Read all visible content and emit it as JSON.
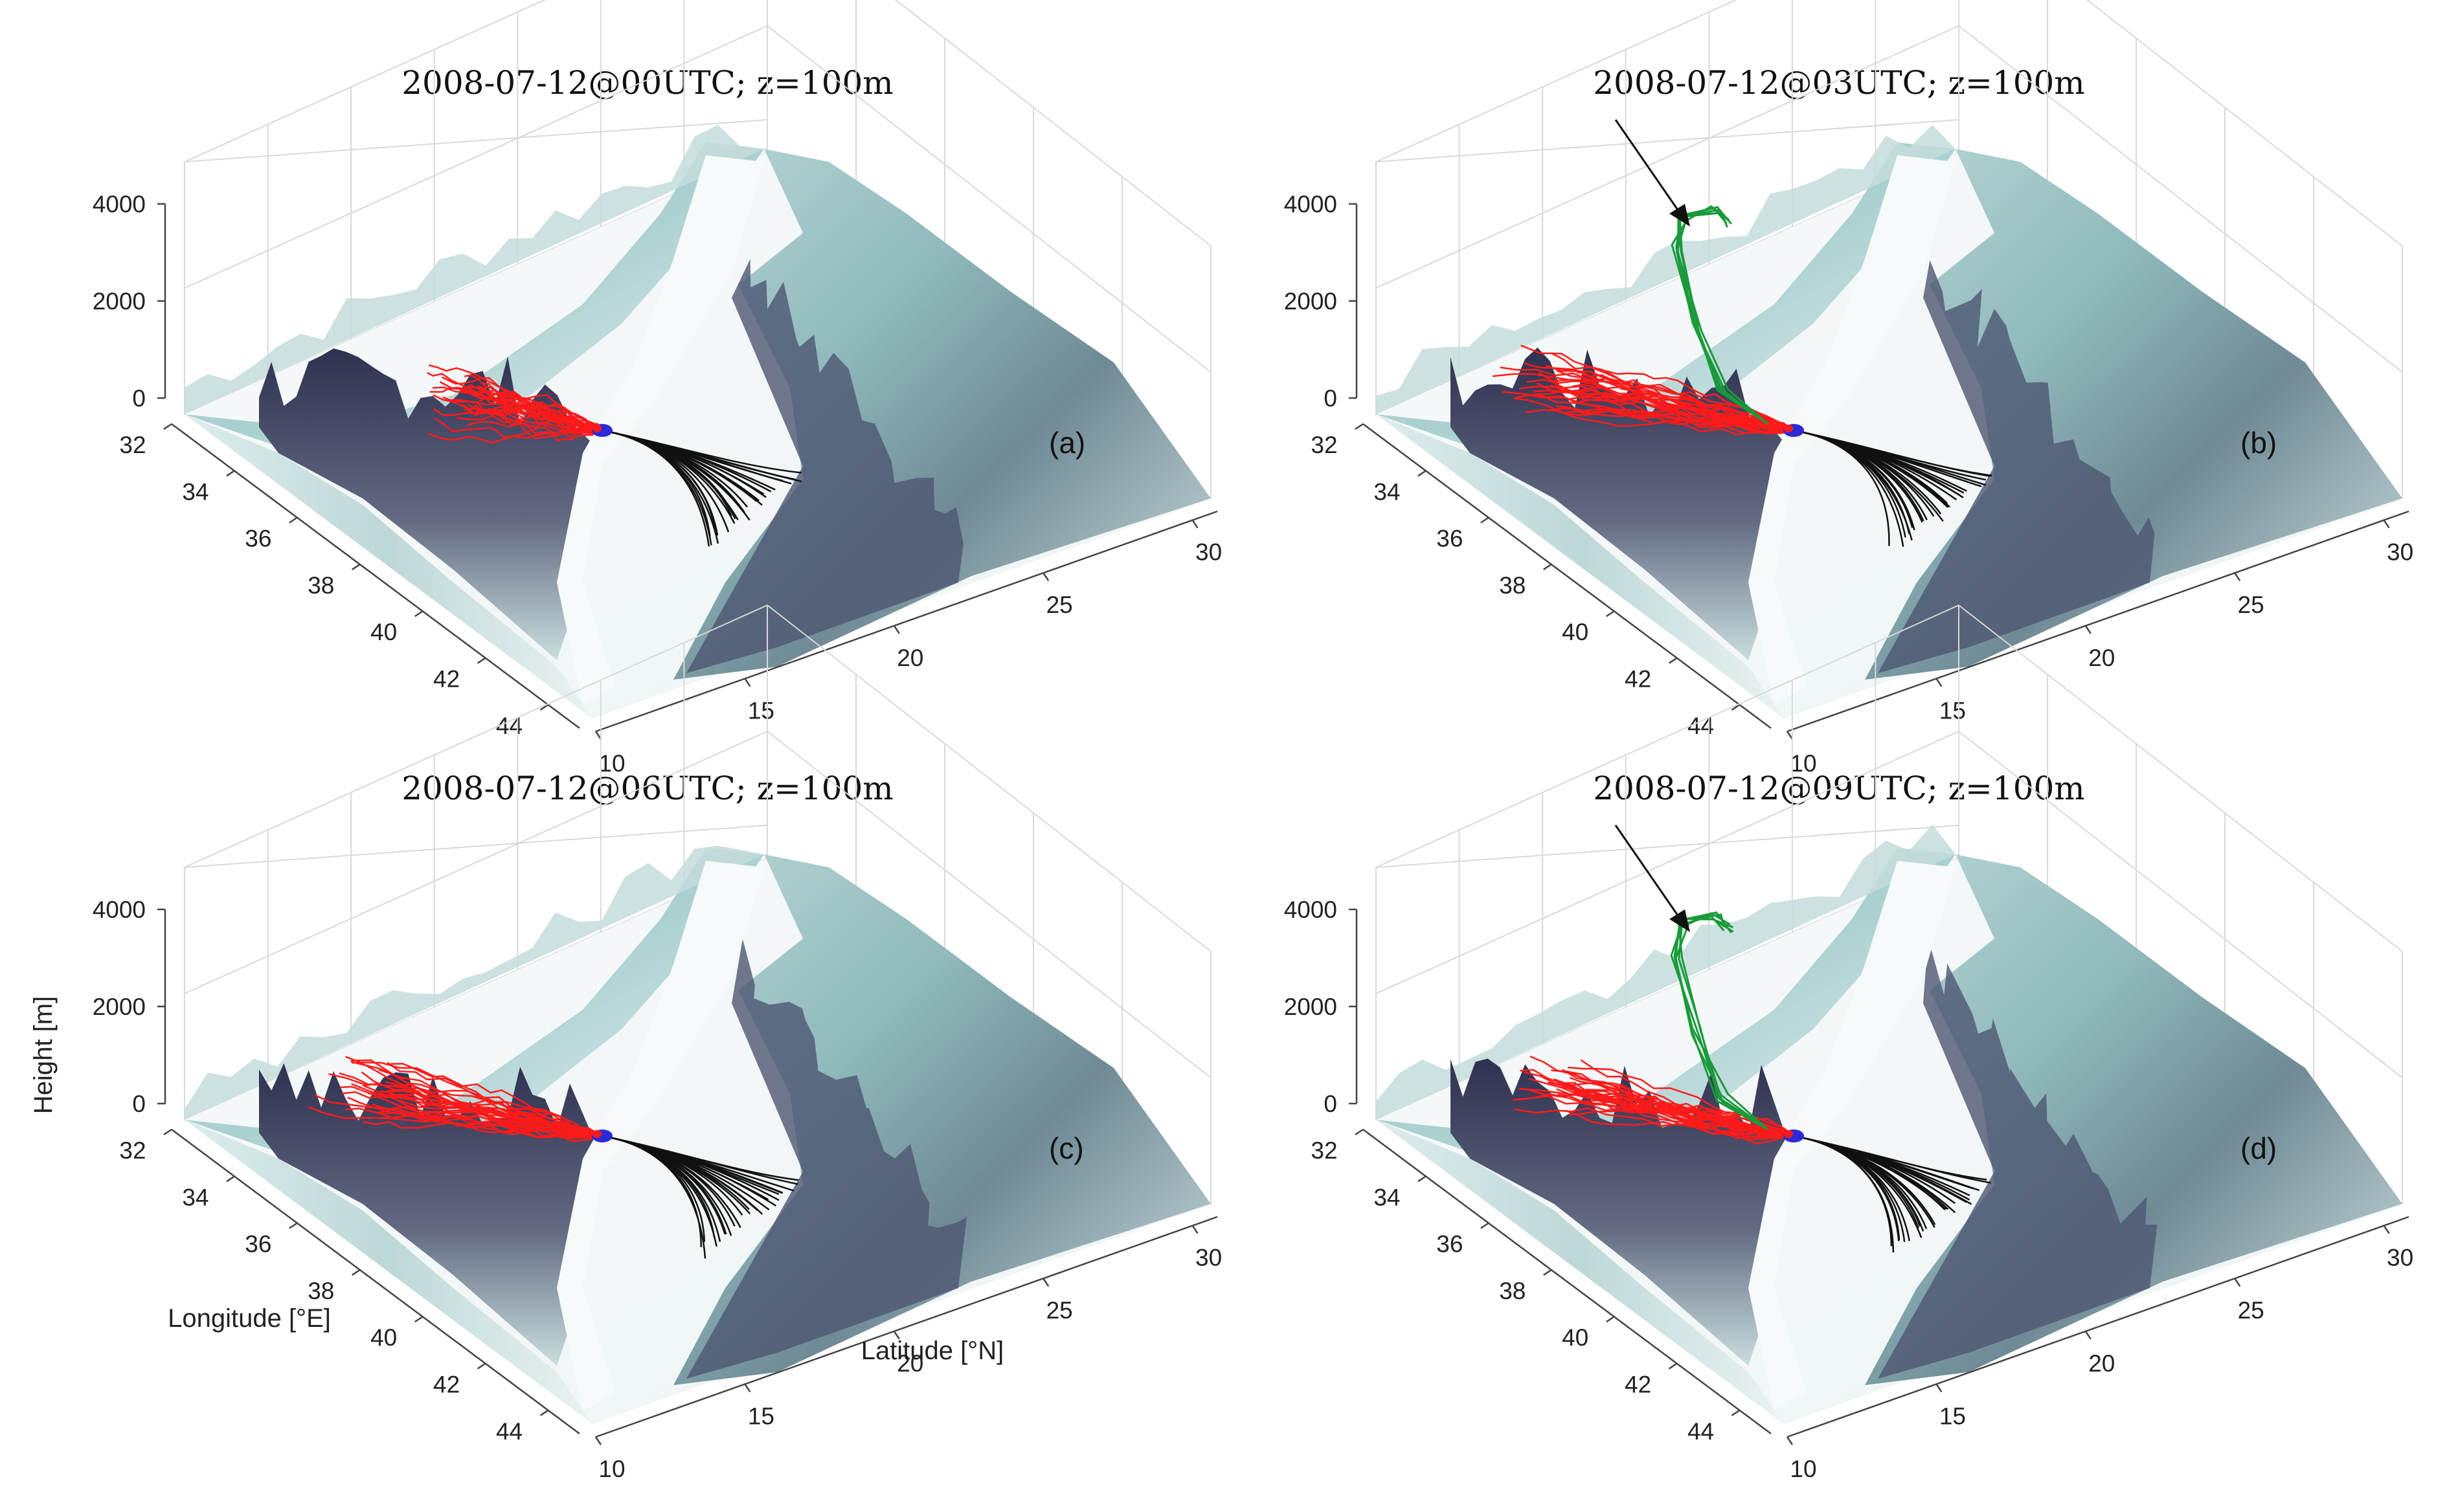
{
  "figure": {
    "panels": [
      {
        "title": "2008-07-12@00UTC; z=100m",
        "label": "(a)",
        "show_axis_labels": false,
        "has_green": false,
        "has_arrow": false
      },
      {
        "title": "2008-07-12@03UTC; z=100m",
        "label": "(b)",
        "show_axis_labels": false,
        "has_green": true,
        "has_arrow": true
      },
      {
        "title": "2008-07-12@06UTC; z=100m",
        "label": "(c)",
        "show_axis_labels": true,
        "has_green": false,
        "has_arrow": false
      },
      {
        "title": "2008-07-12@09UTC; z=100m",
        "label": "(d)",
        "show_axis_labels": false,
        "has_green": true,
        "has_arrow": true
      }
    ]
  },
  "chart_data": {
    "type": "surface",
    "zlabel": "Height [m]",
    "xlabel": "Longitude [°E]",
    "ylabel": "Latitude [°N]",
    "z_ticks": [
      "4000",
      "2000",
      "0"
    ],
    "lon_ticks": [
      "32",
      "34",
      "36",
      "38",
      "40",
      "42",
      "44"
    ],
    "lat_ticks": [
      "10",
      "15",
      "20",
      "25",
      "30"
    ],
    "zlim": [
      0,
      4000
    ],
    "lonlim": [
      32,
      45
    ],
    "latlim": [
      10,
      31
    ],
    "colors": {
      "terrain_low": "#f4f8f8",
      "terrain_mid": "#a8cccd",
      "terrain_high": "#3c3e5a",
      "trajectory_red": "#ff1a1a",
      "trajectory_black": "#111111",
      "trajectory_green": "#1a9a3a",
      "release_blue": "#2b2bd6"
    }
  }
}
